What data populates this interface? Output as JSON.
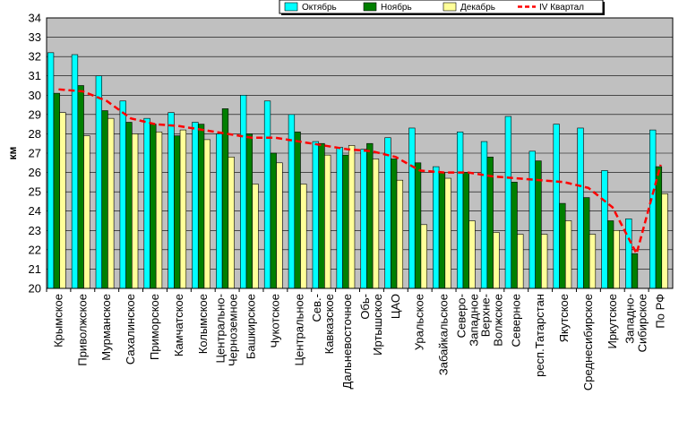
{
  "chart_data": {
    "type": "bar",
    "ylabel": "км",
    "ylim": [
      20,
      34
    ],
    "yticks": [
      20,
      21,
      22,
      23,
      24,
      25,
      26,
      27,
      28,
      29,
      30,
      31,
      32,
      33,
      34
    ],
    "grid": true,
    "legend_position": "top-right",
    "categories": [
      [
        "Крымское"
      ],
      [
        "Приволжское"
      ],
      [
        "Мурманское"
      ],
      [
        "Сахалинское"
      ],
      [
        "Приморское"
      ],
      [
        "Камчатское"
      ],
      [
        "Колымское"
      ],
      [
        "Центрально-",
        "Черноземное"
      ],
      [
        "Башкирское"
      ],
      [
        "Чукотское"
      ],
      [
        "Центральное"
      ],
      [
        "Сев.-",
        "Кавказское"
      ],
      [
        "Дальневосточное"
      ],
      [
        "Обь-",
        "Иртышское"
      ],
      [
        "ЦАО"
      ],
      [
        "Уральское"
      ],
      [
        "Забайкальское"
      ],
      [
        "Северо-",
        "Западное"
      ],
      [
        "Верхне-",
        "Волжское"
      ],
      [
        "Северное"
      ],
      [
        "респ.Татарстан"
      ],
      [
        "Якутское"
      ],
      [
        "Среднесибирское"
      ],
      [
        "Иркутское"
      ],
      [
        "Западно-",
        "Сибирское"
      ],
      [
        "По РФ"
      ]
    ],
    "series": [
      {
        "name": "Октябрь",
        "kind": "bar",
        "color": "#00ffff",
        "values": [
          32.2,
          32.1,
          31.0,
          29.7,
          28.8,
          29.1,
          28.6,
          28.0,
          30.0,
          29.7,
          29.0,
          27.6,
          27.3,
          27.2,
          27.8,
          28.3,
          26.3,
          28.1,
          27.6,
          28.9,
          27.1,
          28.5,
          28.3,
          26.1,
          23.6,
          28.2
        ]
      },
      {
        "name": "Ноябрь",
        "kind": "bar",
        "color": "#007f00",
        "values": [
          30.1,
          30.5,
          29.2,
          28.6,
          28.5,
          27.9,
          28.5,
          29.3,
          28.0,
          27.0,
          28.1,
          27.5,
          26.9,
          27.5,
          26.7,
          26.5,
          26.0,
          26.0,
          26.8,
          25.5,
          26.6,
          24.4,
          24.7,
          23.5,
          21.8,
          26.3
        ]
      },
      {
        "name": "Декабрь",
        "kind": "bar",
        "color": "#ffff99",
        "values": [
          29.1,
          27.9,
          28.8,
          28.0,
          28.1,
          28.2,
          27.7,
          26.8,
          25.4,
          26.5,
          25.4,
          26.9,
          27.4,
          26.7,
          25.6,
          23.3,
          25.7,
          23.5,
          22.9,
          22.8,
          22.8,
          23.5,
          22.8,
          23.0,
          19.9,
          24.9
        ]
      },
      {
        "name": "IV Квартал",
        "kind": "line",
        "color": "#ff0000",
        "values": [
          30.3,
          30.2,
          29.7,
          28.8,
          28.5,
          28.4,
          28.2,
          28.0,
          27.8,
          27.8,
          27.6,
          27.4,
          27.2,
          27.1,
          26.8,
          26.1,
          26.0,
          26.0,
          25.8,
          25.7,
          25.6,
          25.5,
          25.2,
          24.2,
          21.8,
          26.4
        ]
      }
    ]
  }
}
